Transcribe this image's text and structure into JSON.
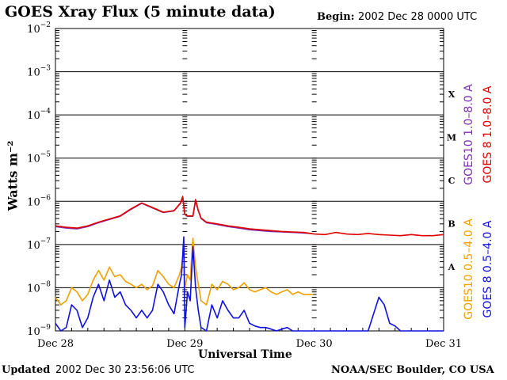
{
  "header": {
    "title": "GOES Xray Flux (5 minute data)",
    "begin_label": "Begin:",
    "begin_value": "2002 Dec 28 0000 UTC"
  },
  "footer": {
    "updated_label": "Updated",
    "updated_value": "2002 Dec 30 23:56:06 UTC",
    "credit": "NOAA/SEC Boulder, CO USA"
  },
  "colors": {
    "goes10_long": "#7b2fb0",
    "goes8_long": "#e00000",
    "goes10_short": "#f0a000",
    "goes8_short": "#1010e0"
  },
  "chart_data": {
    "type": "line",
    "title": "GOES Xray Flux (5 minute data)",
    "xlabel": "Universal Time",
    "ylabel": "Watts m⁻²",
    "yscale": "log",
    "ylim": [
      1e-09,
      0.01
    ],
    "xlim": [
      0,
      72
    ],
    "x_unit": "hours since 2002 Dec 28 00 UTC",
    "x_ticks": [
      {
        "x": 0,
        "label": "Dec 28"
      },
      {
        "x": 24,
        "label": "Dec 29"
      },
      {
        "x": 48,
        "label": "Dec 30"
      },
      {
        "x": 72,
        "label": "Dec 31"
      }
    ],
    "y_ticks": [
      {
        "exp": -2,
        "label": "10",
        "sup": "−2"
      },
      {
        "exp": -3,
        "label": "10",
        "sup": "−3"
      },
      {
        "exp": -4,
        "label": "10",
        "sup": "−4"
      },
      {
        "exp": -5,
        "label": "10",
        "sup": "−5"
      },
      {
        "exp": -6,
        "label": "10",
        "sup": "−6"
      },
      {
        "exp": -7,
        "label": "10",
        "sup": "−7"
      },
      {
        "exp": -8,
        "label": "10",
        "sup": "−8"
      },
      {
        "exp": -9,
        "label": "10",
        "sup": "−9"
      }
    ],
    "flare_classes": [
      {
        "label": "X",
        "exp": -3.5
      },
      {
        "label": "M",
        "exp": -4.5
      },
      {
        "label": "C",
        "exp": -5.5
      },
      {
        "label": "B",
        "exp": -6.5
      },
      {
        "label": "A",
        "exp": -7.5
      }
    ],
    "grid": true,
    "legend_position": "right",
    "series": [
      {
        "name": "GOES10 1.0–8.0 A",
        "color": "#7b2fb0",
        "x": [
          0,
          2,
          4,
          6,
          8,
          10,
          12,
          14,
          16,
          18,
          20,
          22,
          23.2,
          23.6,
          24,
          24.4,
          25.5,
          26,
          26.5,
          27,
          28,
          30,
          32,
          34,
          36,
          38,
          40,
          42,
          44,
          46,
          47.5
        ],
        "y": [
          2.6e-07,
          2.4e-07,
          2.3e-07,
          2.6e-07,
          3.2e-07,
          3.8e-07,
          4.5e-07,
          6.5e-07,
          9e-07,
          7e-07,
          5.5e-07,
          6e-07,
          9e-07,
          1.25e-06,
          5e-07,
          4.5e-07,
          4.5e-07,
          1.05e-06,
          6e-07,
          4e-07,
          3.2e-07,
          2.9e-07,
          2.6e-07,
          2.4e-07,
          2.2e-07,
          2.1e-07,
          2e-07,
          1.95e-07,
          1.9e-07,
          1.85e-07,
          1.8e-07
        ]
      },
      {
        "name": "GOES 8 1.0–8.0 A",
        "color": "#e00000",
        "x": [
          0,
          2,
          4,
          6,
          8,
          10,
          12,
          14,
          16,
          18,
          20,
          22,
          23.2,
          23.6,
          24,
          24.4,
          25.5,
          26,
          26.5,
          27,
          28,
          30,
          32,
          34,
          36,
          38,
          40,
          42,
          44,
          46,
          48,
          50,
          52,
          54,
          56,
          58,
          60,
          62,
          64,
          66,
          68,
          70,
          72
        ],
        "y": [
          2.7e-07,
          2.5e-07,
          2.4e-07,
          2.7e-07,
          3.3e-07,
          3.9e-07,
          4.6e-07,
          6.7e-07,
          9.2e-07,
          7.2e-07,
          5.6e-07,
          6.1e-07,
          9.2e-07,
          1.3e-06,
          5.1e-07,
          4.6e-07,
          4.6e-07,
          1.1e-06,
          6.2e-07,
          4.1e-07,
          3.3e-07,
          3e-07,
          2.7e-07,
          2.5e-07,
          2.3e-07,
          2.2e-07,
          2.1e-07,
          2e-07,
          1.95e-07,
          1.9e-07,
          1.75e-07,
          1.7e-07,
          1.9e-07,
          1.75e-07,
          1.7e-07,
          1.8e-07,
          1.7e-07,
          1.65e-07,
          1.6e-07,
          1.7e-07,
          1.6e-07,
          1.6e-07,
          1.7e-07
        ]
      },
      {
        "name": "GOES10 0.5–4.0 A",
        "color": "#f0a000",
        "x": [
          0,
          1,
          2,
          3,
          4,
          5,
          6,
          7,
          8,
          9,
          10,
          11,
          12,
          13,
          14,
          15,
          16,
          17,
          18,
          19,
          20,
          21,
          22,
          23,
          23.4,
          23.8,
          24,
          24.5,
          25,
          25.5,
          26,
          26.5,
          27,
          28,
          29,
          30,
          31,
          32,
          33,
          34,
          35,
          36,
          37,
          38,
          39,
          40,
          41,
          42,
          43,
          44,
          45,
          46,
          47,
          47.8
        ],
        "y": [
          6e-09,
          4e-09,
          5e-09,
          1e-08,
          8e-09,
          5e-09,
          7e-09,
          1.5e-08,
          2.5e-08,
          1.5e-08,
          3e-08,
          1.8e-08,
          2e-08,
          1.4e-08,
          1.2e-08,
          1e-08,
          1.2e-08,
          9e-09,
          1.1e-08,
          2.5e-08,
          1.8e-08,
          1.2e-08,
          1e-08,
          2e-08,
          3e-08,
          8e-08,
          1e-08,
          2e-08,
          1.5e-08,
          1.4e-07,
          3e-08,
          1.2e-08,
          5e-09,
          4e-09,
          1.2e-08,
          9e-09,
          1.4e-08,
          1.2e-08,
          9e-09,
          1e-08,
          1.3e-08,
          9e-09,
          8e-09,
          9e-09,
          1e-08,
          8e-09,
          7e-09,
          8e-09,
          9e-09,
          7e-09,
          8e-09,
          7e-09,
          7e-09,
          7e-09
        ]
      },
      {
        "name": "GOES 8 0.5–4.0 A",
        "color": "#1010e0",
        "x": [
          0,
          1,
          2,
          3,
          4,
          5,
          6,
          7,
          8,
          9,
          10,
          11,
          12,
          13,
          14,
          15,
          16,
          17,
          18,
          19,
          20,
          21,
          22,
          23,
          23.4,
          23.8,
          24,
          24.5,
          25,
          25.5,
          26,
          26.5,
          27,
          28,
          29,
          30,
          31,
          32,
          33,
          34,
          35,
          36,
          37,
          38,
          39,
          40,
          41,
          42,
          43,
          44,
          45,
          46,
          47,
          48,
          50,
          52,
          54,
          56,
          58,
          60,
          61,
          62,
          63,
          64,
          66,
          68,
          70,
          72
        ],
        "y": [
          1.5e-09,
          1e-09,
          1.2e-09,
          4e-09,
          3e-09,
          1.2e-09,
          2e-09,
          6e-09,
          1.2e-08,
          5e-09,
          1.5e-08,
          6e-09,
          8e-09,
          4e-09,
          3e-09,
          2e-09,
          3e-09,
          2e-09,
          3e-09,
          1.2e-08,
          8e-09,
          4e-09,
          2.5e-09,
          1.2e-08,
          2e-08,
          1.5e-07,
          1.2e-09,
          8e-09,
          5e-09,
          9e-08,
          1e-08,
          3e-09,
          1.2e-09,
          1e-09,
          4e-09,
          2e-09,
          5e-09,
          3e-09,
          2e-09,
          2e-09,
          3e-09,
          1.5e-09,
          1.3e-09,
          1.2e-09,
          1.2e-09,
          1.1e-09,
          1e-09,
          1.1e-09,
          1.2e-09,
          1e-09,
          1e-09,
          1e-09,
          1e-09,
          1e-09,
          1e-09,
          1e-09,
          1e-09,
          1e-09,
          1e-09,
          6e-09,
          4e-09,
          1.5e-09,
          1.3e-09,
          1e-09,
          1e-09,
          1e-09,
          1e-09,
          1e-09
        ]
      }
    ]
  }
}
